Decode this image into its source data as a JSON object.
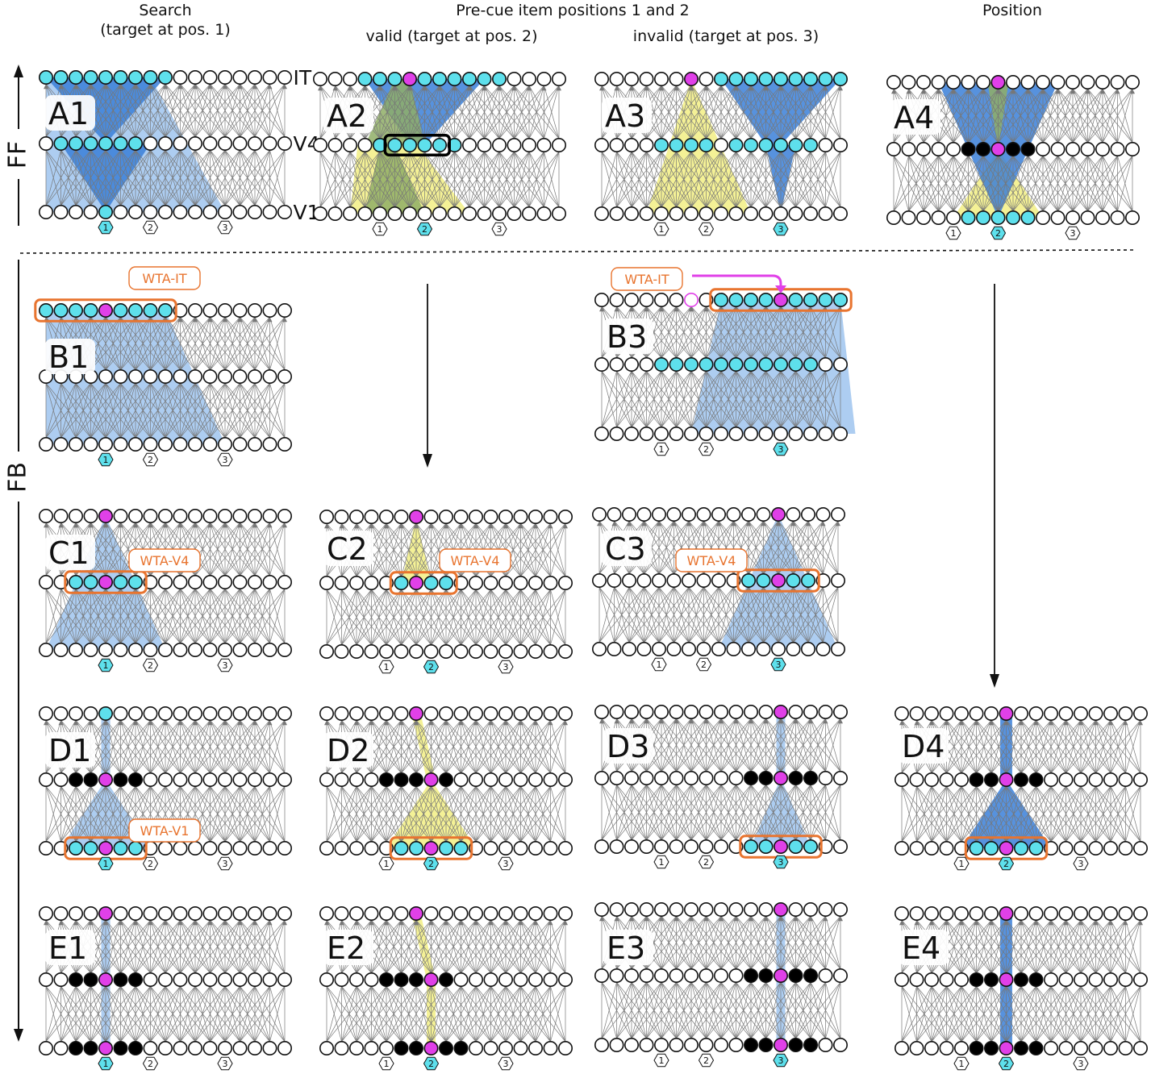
{
  "headers": {
    "search": "Search",
    "search_sub": "(target at pos. 1)",
    "precue": "Pre-cue item positions 1 and 2",
    "valid": "valid (target at pos. 2)",
    "invalid": "invalid (target at pos. 3)",
    "position": "Position"
  },
  "axis": {
    "ff": "FF",
    "fb": "FB"
  },
  "layer_names": [
    "IT",
    "V4",
    "V1"
  ],
  "wta_labels": {
    "it": "WTA-IT",
    "v4": "WTA-V4",
    "v1": "WTA-V1"
  },
  "position_labels": [
    "1",
    "2",
    "3"
  ],
  "colors": {
    "active": "#5ee0ec",
    "target": "#e040e8",
    "suppressed": "#000000",
    "blue_fill": "#3a7fd8",
    "light_blue_fill": "#9fc4ee",
    "yellow_fill": "#f2ee84",
    "green_fill": "#8fae66",
    "wta_border": "#e8742f",
    "arrow": "#e040e8"
  },
  "panels": [
    {
      "id": "A1",
      "label": "A1",
      "show_layers": true
    },
    {
      "id": "A2",
      "label": "A2"
    },
    {
      "id": "A3",
      "label": "A3"
    },
    {
      "id": "A4",
      "label": "A4"
    },
    {
      "id": "B1",
      "label": "B1"
    },
    {
      "id": "B3",
      "label": "B3"
    },
    {
      "id": "C1",
      "label": "C1"
    },
    {
      "id": "C2",
      "label": "C2"
    },
    {
      "id": "C3",
      "label": "C3"
    },
    {
      "id": "D1",
      "label": "D1"
    },
    {
      "id": "D2",
      "label": "D2"
    },
    {
      "id": "D3",
      "label": "D3"
    },
    {
      "id": "D4",
      "label": "D4"
    },
    {
      "id": "E1",
      "label": "E1"
    },
    {
      "id": "E2",
      "label": "E2"
    },
    {
      "id": "E3",
      "label": "E3"
    },
    {
      "id": "E4",
      "label": "E4"
    }
  ]
}
